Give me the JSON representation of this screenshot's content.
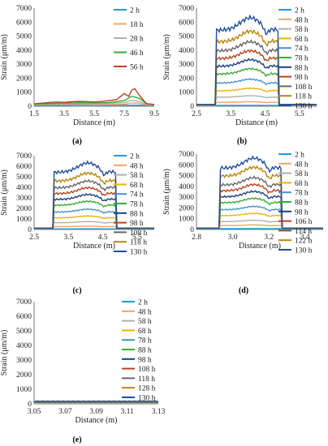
{
  "chart_data": [
    {
      "panel": "a",
      "caption": "(a)",
      "type": "line",
      "xlabel": "Distance (m)",
      "ylabel": "Strain (μm/m)",
      "xlim": [
        1.5,
        9.5
      ],
      "ylim": [
        0,
        7000
      ],
      "xticks": [
        "1.5",
        "3.5",
        "5.5",
        "7.5",
        "9.5"
      ],
      "xtick_values": [
        1.5,
        3.5,
        5.5,
        7.5,
        9.5
      ],
      "yticks": [
        "0",
        "1000",
        "2000",
        "3000",
        "4000",
        "5000",
        "6000",
        "7000"
      ],
      "ytick_values": [
        0,
        1000,
        2000,
        3000,
        4000,
        5000,
        6000,
        7000
      ],
      "legend": "right",
      "series": [
        {
          "name": "2 h",
          "color": "#1f9bd7",
          "x": [
            1.5,
            2.5,
            3.5,
            4.5,
            5.5,
            6.5,
            7.5,
            8.0,
            8.5,
            9.0,
            9.5
          ],
          "values": [
            60,
            70,
            70,
            80,
            80,
            70,
            80,
            70,
            70,
            60,
            60
          ]
        },
        {
          "name": "18 h",
          "color": "#f4a460",
          "x": [
            1.5,
            2.5,
            3.5,
            4.5,
            5.5,
            6.5,
            7.5,
            8.0,
            8.5,
            9.0,
            9.5
          ],
          "values": [
            100,
            120,
            130,
            140,
            130,
            130,
            150,
            240,
            200,
            100,
            80
          ]
        },
        {
          "name": "28 h",
          "color": "#b0b0b0",
          "x": [
            1.5,
            2.5,
            3.5,
            4.5,
            5.5,
            6.5,
            7.5,
            8.0,
            8.5,
            9.0,
            9.5
          ],
          "values": [
            130,
            160,
            180,
            200,
            190,
            200,
            260,
            420,
            330,
            140,
            100
          ]
        },
        {
          "name": "46 h",
          "color": "#3aaa35",
          "x": [
            1.5,
            2.5,
            3.5,
            4.5,
            5.5,
            6.5,
            7.5,
            8.0,
            8.5,
            9.0,
            9.5
          ],
          "values": [
            150,
            190,
            220,
            250,
            240,
            260,
            400,
            720,
            560,
            180,
            120
          ]
        },
        {
          "name": "56 h",
          "color": "#b5441f",
          "x": [
            1.5,
            2.0,
            2.5,
            3.0,
            3.5,
            4.0,
            4.5,
            5.0,
            5.5,
            6.0,
            6.5,
            7.0,
            7.5,
            7.8,
            8.0,
            8.2,
            8.5,
            8.8,
            9.0,
            9.5
          ],
          "values": [
            170,
            220,
            260,
            300,
            280,
            320,
            350,
            330,
            300,
            340,
            400,
            480,
            900,
            700,
            1150,
            1250,
            800,
            400,
            180,
            130
          ]
        }
      ]
    },
    {
      "panel": "b",
      "caption": "(b)",
      "type": "line",
      "xlabel": "Distance (m)",
      "ylabel": "Strain (μm/m)",
      "xlim": [
        2.5,
        6.0
      ],
      "ylim": [
        0,
        7000
      ],
      "xticks": [
        "2.5",
        "3.5",
        "4.5",
        "5.5"
      ],
      "xtick_values": [
        2.5,
        3.5,
        4.5,
        5.5
      ],
      "yticks": [
        "0",
        "1000",
        "2000",
        "3000",
        "4000",
        "5000",
        "6000",
        "7000"
      ],
      "ytick_values": [
        0,
        1000,
        2000,
        3000,
        4000,
        5000,
        6000,
        7000
      ],
      "legend": "right",
      "plateau": {
        "start": 3.05,
        "end": 4.9
      },
      "series": [
        {
          "name": "2 h",
          "color": "#1f9bd7",
          "level": 60
        },
        {
          "name": "48 h",
          "color": "#f4a460",
          "level": 300
        },
        {
          "name": "58 h",
          "color": "#b0b0b0",
          "level": 700
        },
        {
          "name": "68 h",
          "color": "#e8b400",
          "level": 1200
        },
        {
          "name": "74 h",
          "color": "#4b8fcf",
          "level": 1800
        },
        {
          "name": "78 h",
          "color": "#3aaa35",
          "level": 2500
        },
        {
          "name": "88 h",
          "color": "#1a3f80",
          "level": 3100
        },
        {
          "name": "98 h",
          "color": "#b5441f",
          "level": 3700
        },
        {
          "name": "108 h",
          "color": "#666666",
          "level": 4300
        },
        {
          "name": "118 h",
          "color": "#b8860b",
          "level": 5000
        },
        {
          "name": "130 h",
          "color": "#1f4e9a",
          "level": 5900
        }
      ]
    },
    {
      "panel": "c",
      "caption": "(c)",
      "type": "line",
      "xlabel": "Distance (m)",
      "ylabel": "Strain (μm/m)",
      "xlim": [
        2.5,
        6.0
      ],
      "ylim": [
        0,
        7000
      ],
      "xticks": [
        "2.5",
        "3.5",
        "4.5",
        "5.5"
      ],
      "xtick_values": [
        2.5,
        3.5,
        4.5,
        5.5
      ],
      "yticks": [
        "0",
        "1000",
        "2000",
        "3000",
        "4000",
        "5000",
        "6000",
        "7000"
      ],
      "ytick_values": [
        0,
        1000,
        2000,
        3000,
        4000,
        5000,
        6000,
        7000
      ],
      "legend": "right",
      "plateau": {
        "start": 3.05,
        "end": 4.9
      },
      "series": [
        {
          "name": "2 h",
          "color": "#1f9bd7",
          "level": 60
        },
        {
          "name": "48 h",
          "color": "#f4a460",
          "level": 300
        },
        {
          "name": "58 h",
          "color": "#b0b0b0",
          "level": 700
        },
        {
          "name": "68 h",
          "color": "#e8b400",
          "level": 1200
        },
        {
          "name": "74 h",
          "color": "#4b8fcf",
          "level": 1800
        },
        {
          "name": "78 h",
          "color": "#3aaa35",
          "level": 2500
        },
        {
          "name": "88 h",
          "color": "#1a3f80",
          "level": 3100
        },
        {
          "name": "98 h",
          "color": "#b5441f",
          "level": 3700
        },
        {
          "name": "108 h",
          "color": "#666666",
          "level": 4300
        },
        {
          "name": "118 h",
          "color": "#b8860b",
          "level": 5000
        },
        {
          "name": "130 h",
          "color": "#1f4e9a",
          "level": 5900
        }
      ]
    },
    {
      "panel": "d",
      "caption": "(d)",
      "type": "line",
      "xlabel": "Distance (m)",
      "ylabel": "Strain (μm/m)",
      "xlim": [
        2.8,
        3.5
      ],
      "ylim": [
        0,
        7000
      ],
      "xticks": [
        "2.8",
        "3.0",
        "3.2",
        "3.4"
      ],
      "xtick_values": [
        2.8,
        3.0,
        3.2,
        3.4
      ],
      "yticks": [
        "0",
        "1000",
        "2000",
        "3000",
        "4000",
        "5000",
        "6000",
        "7000"
      ],
      "ytick_values": [
        0,
        1000,
        2000,
        3000,
        4000,
        5000,
        6000,
        7000
      ],
      "legend": "right",
      "plateau": {
        "start": 2.93,
        "end": 3.27
      },
      "series": [
        {
          "name": "2 h",
          "color": "#1f9bd7",
          "level": 80
        },
        {
          "name": "48 h",
          "color": "#f4a460",
          "level": 400
        },
        {
          "name": "58 h",
          "color": "#b0b0b0",
          "level": 800
        },
        {
          "name": "68 h",
          "color": "#e8b400",
          "level": 1400
        },
        {
          "name": "78 h",
          "color": "#4b8fcf",
          "level": 2000
        },
        {
          "name": "88 h",
          "color": "#3aaa35",
          "level": 2700
        },
        {
          "name": "98 h",
          "color": "#1a3f80",
          "level": 3300
        },
        {
          "name": "106 h",
          "color": "#b5441f",
          "level": 3900
        },
        {
          "name": "114 h",
          "color": "#666666",
          "level": 4500
        },
        {
          "name": "122 h",
          "color": "#b8860b",
          "level": 5400
        },
        {
          "name": "130 h",
          "color": "#1f4e9a",
          "level": 6200
        }
      ]
    },
    {
      "panel": "e",
      "caption": "(e)",
      "type": "line",
      "xlabel": "Distance (m)",
      "ylabel": "Strain (μm/m)",
      "xlim": [
        3.05,
        3.13
      ],
      "ylim": [
        0,
        7000
      ],
      "xticks": [
        "3.05",
        "3.07",
        "3.09",
        "3.11",
        "3.13"
      ],
      "xtick_values": [
        3.05,
        3.07,
        3.09,
        3.11,
        3.13
      ],
      "yticks": [
        "0",
        "1000",
        "2000",
        "3000",
        "4000",
        "5000",
        "6000",
        "7000"
      ],
      "ytick_values": [
        0,
        1000,
        2000,
        3000,
        4000,
        5000,
        6000,
        7000
      ],
      "legend": "right",
      "series": [
        {
          "name": "2 h",
          "color": "#1f9bd7",
          "level": 40
        },
        {
          "name": "48 h",
          "color": "#f4a460",
          "level": 60
        },
        {
          "name": "58  h",
          "color": "#b0b0b0",
          "level": 80
        },
        {
          "name": "68 h",
          "color": "#e8b400",
          "level": 100
        },
        {
          "name": "78 h",
          "color": "#4b8fcf",
          "level": 110
        },
        {
          "name": "88 h",
          "color": "#3aaa35",
          "level": 120
        },
        {
          "name": "98 h",
          "color": "#1a3f80",
          "level": 130
        },
        {
          "name": "108 h",
          "color": "#b5441f",
          "level": 140
        },
        {
          "name": "118 h",
          "color": "#666666",
          "level": 150
        },
        {
          "name": "128 h",
          "color": "#b8860b",
          "level": 160
        },
        {
          "name": "130 h",
          "color": "#1f4e9a",
          "level": 180
        }
      ]
    }
  ]
}
